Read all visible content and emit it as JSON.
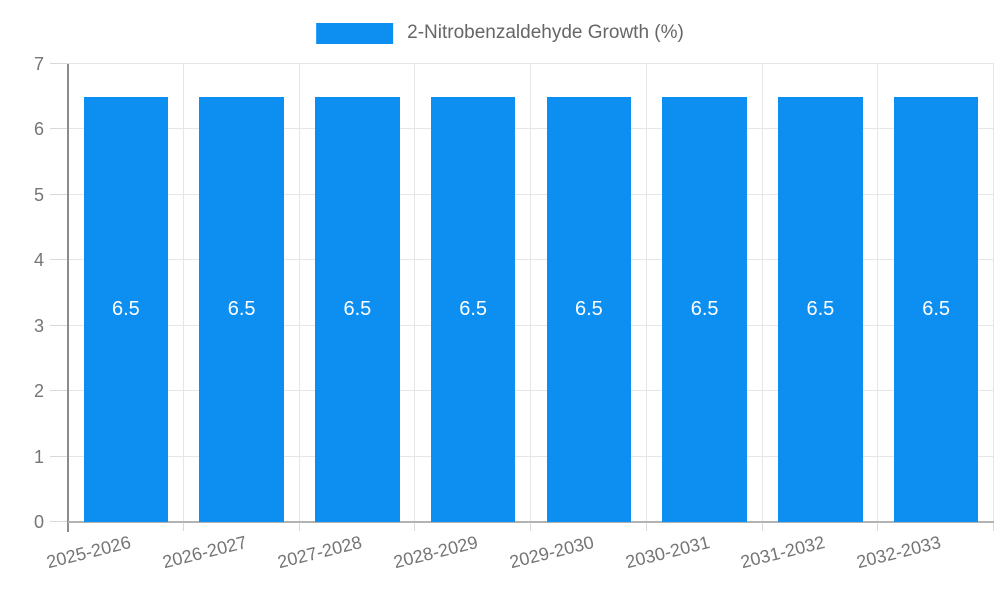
{
  "chart_data": {
    "type": "bar",
    "title": "2-Nitrobenzaldehyde Growth (%)",
    "legend": {
      "position": "top",
      "label": "2-Nitrobenzaldehyde Growth (%)"
    },
    "categories": [
      "2025-2026",
      "2026-2027",
      "2027-2028",
      "2028-2029",
      "2029-2030",
      "2030-2031",
      "2031-2032",
      "2032-2033"
    ],
    "series": [
      {
        "name": "2-Nitrobenzaldehyde Growth (%)",
        "values": [
          6.5,
          6.5,
          6.5,
          6.5,
          6.5,
          6.5,
          6.5,
          6.5
        ]
      }
    ],
    "bar_labels": [
      "6.5",
      "6.5",
      "6.5",
      "6.5",
      "6.5",
      "6.5",
      "6.5",
      "6.5"
    ],
    "xlabel": "",
    "ylabel": "",
    "ylim": [
      0,
      7
    ],
    "yticks": [
      0,
      1,
      2,
      3,
      4,
      5,
      6,
      7
    ],
    "grid": true,
    "x_tick_rotation_deg": -14,
    "bar_width_fraction": 0.73,
    "colors": {
      "bar": "#0d8ff2",
      "grid": "#e6e6e6",
      "y_axis_line": "#8c8c8c",
      "x_axis_line": "#b3b3b3",
      "tick_mark": "#d9d9d9",
      "tick_text": "#757575",
      "bar_label_text": "#ffffff",
      "legend_text": "#666666",
      "background": "#ffffff"
    }
  }
}
